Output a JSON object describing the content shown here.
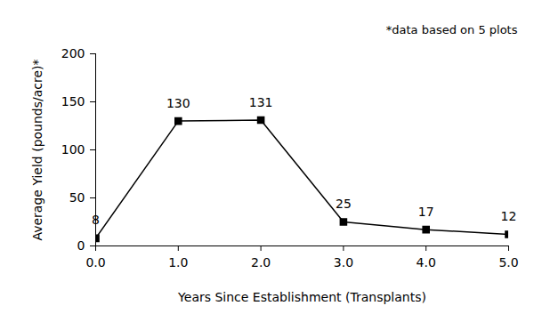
{
  "chart_data": {
    "type": "line",
    "x": [
      0,
      1,
      2,
      3,
      4,
      5
    ],
    "values": [
      8,
      130,
      131,
      25,
      17,
      12
    ],
    "xlim": [
      0,
      5
    ],
    "xticks": [
      0,
      1,
      2,
      3,
      4,
      5
    ],
    "ylim": [
      0,
      200
    ],
    "yticks": [
      0,
      50,
      100,
      150,
      200
    ],
    "x_label": "Years Since Establishment (Transplants)",
    "y_label": "Average Yield (pounds/acre)*",
    "annotation": "*data based on 5 plots",
    "color": "#000000",
    "marker": "square",
    "line_style": "solid",
    "data_labels": true,
    "grid": false
  }
}
